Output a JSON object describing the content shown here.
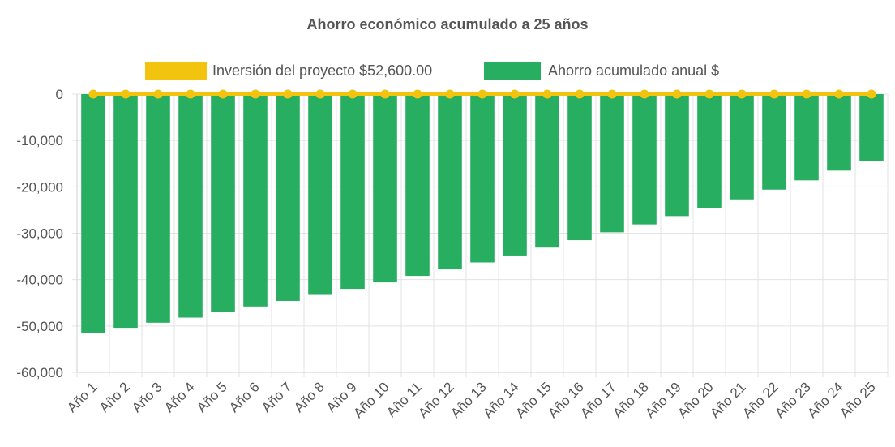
{
  "chart_data": {
    "type": "bar",
    "title": "Ahorro económico acumulado a 25 años",
    "categories": [
      "Año 1",
      "Año 2",
      "Año 3",
      "Año 4",
      "Año 5",
      "Año 6",
      "Año 7",
      "Año 8",
      "Año 9",
      "Año 10",
      "Año 11",
      "Año 12",
      "Año 13",
      "Año 14",
      "Año 15",
      "Año 16",
      "Año 17",
      "Año 18",
      "Año 19",
      "Año 20",
      "Año 21",
      "Año 22",
      "Año 23",
      "Año 24",
      "Año 25"
    ],
    "series": [
      {
        "name": "Inversión del proyecto $52,600.00",
        "kind": "line",
        "color": "#f2c40f",
        "values": [
          0,
          0,
          0,
          0,
          0,
          0,
          0,
          0,
          0,
          0,
          0,
          0,
          0,
          0,
          0,
          0,
          0,
          0,
          0,
          0,
          0,
          0,
          0,
          0,
          0
        ]
      },
      {
        "name": "Ahorro acumulado anual $",
        "kind": "bar",
        "color": "#27ae60",
        "values": [
          -51500,
          -50400,
          -49300,
          -48200,
          -47000,
          -45800,
          -44600,
          -43300,
          -42000,
          -40600,
          -39200,
          -37800,
          -36300,
          -34800,
          -33100,
          -31500,
          -29800,
          -28100,
          -26300,
          -24500,
          -22700,
          -20600,
          -18600,
          -16500,
          -14400
        ]
      }
    ],
    "ylim": [
      -60000,
      0
    ],
    "yticks": [
      0,
      -10000,
      -20000,
      -30000,
      -40000,
      -50000,
      -60000
    ],
    "ytick_labels": [
      "0",
      "-10,000",
      "-20,000",
      "-30,000",
      "-40,000",
      "-50,000",
      "-60,000"
    ],
    "xlabel": "",
    "ylabel": "",
    "legend_position": "top-center",
    "grid": true
  }
}
